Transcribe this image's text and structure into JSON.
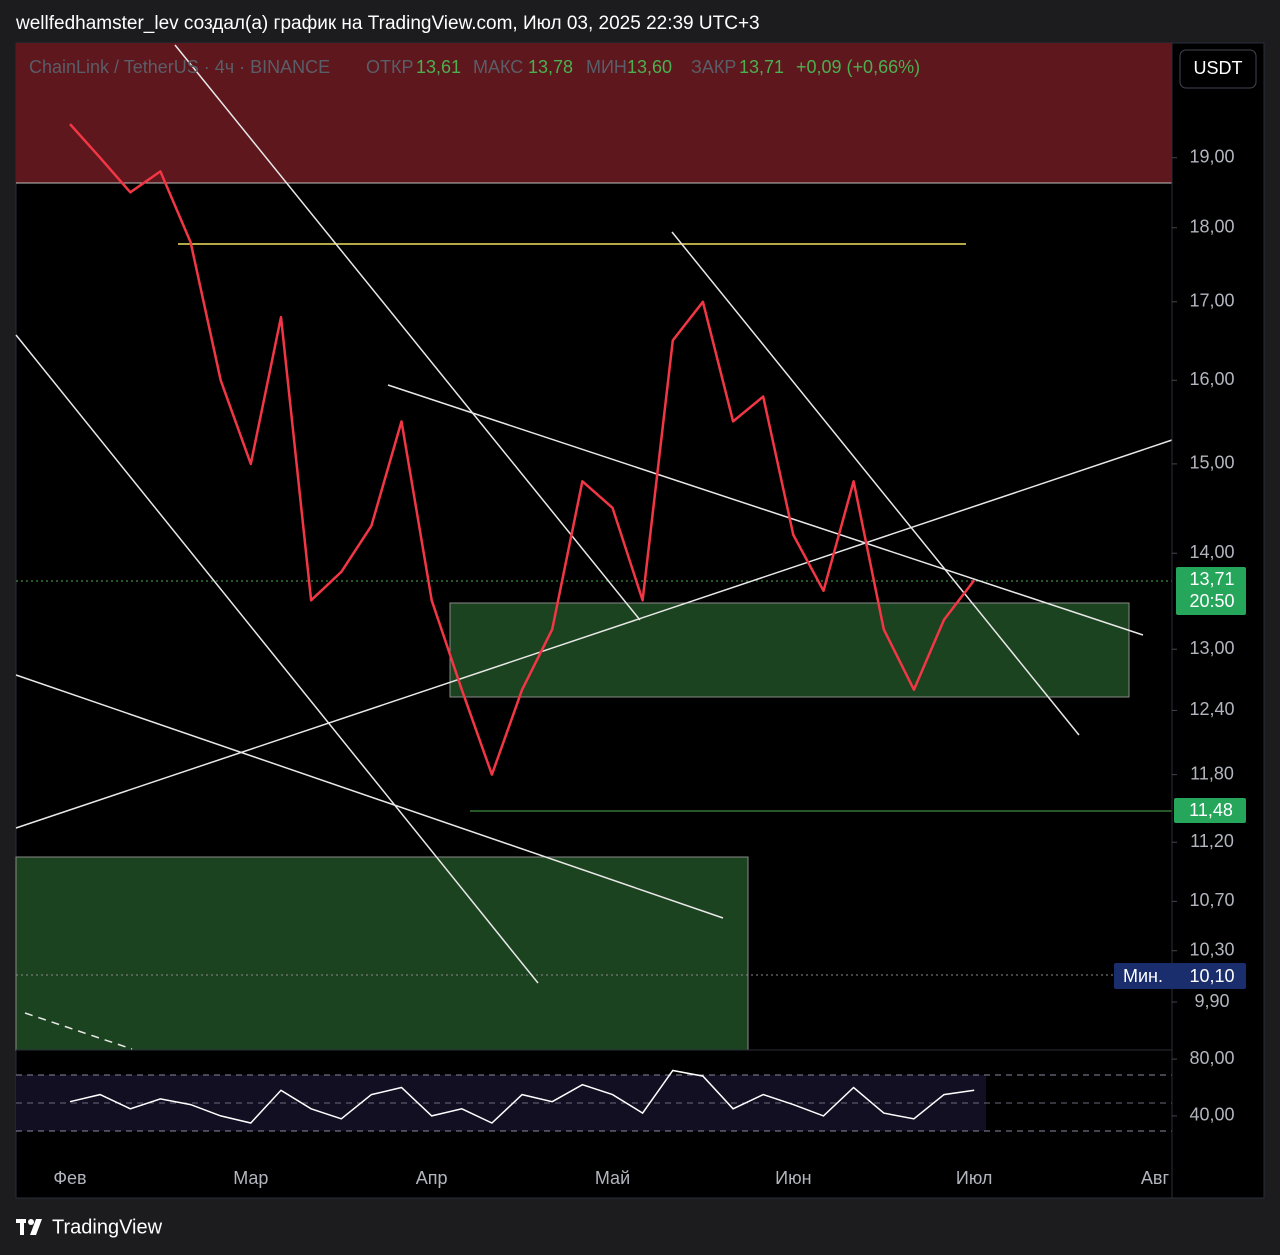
{
  "header": {
    "title": "wellfedhamster_lev создал(а) график на TradingView.com, Июл 03, 2025 22:39 UTC+3"
  },
  "legend": {
    "symbol": "ChainLink / TetherUS · 4ч · BINANCE",
    "open_label": "ОТКР",
    "open": "13,61",
    "high_label": "МАКС",
    "high": "13,78",
    "low_label": "МИН",
    "low": "13,60",
    "close_label": "ЗАКР",
    "close": "13,71",
    "change": "+0,09 (+0,66%)"
  },
  "currency": "USDT",
  "price_tags": {
    "last": "13,71",
    "timer": "20:50",
    "level": "11,48",
    "min_label": "Мин.",
    "min_value": "10,10"
  },
  "chart_data": {
    "type": "line",
    "log_scale": true,
    "color": "#f23645",
    "categories": [
      "Фев",
      null,
      null,
      null,
      null,
      null,
      "Мар",
      null,
      null,
      null,
      null,
      null,
      "Апр",
      null,
      null,
      null,
      null,
      null,
      "Май",
      null,
      null,
      null,
      null,
      null,
      "Июн",
      null,
      null,
      null,
      null,
      null,
      "Июл",
      null,
      null,
      null,
      null,
      null,
      "Авг"
    ],
    "series": [
      {
        "name": "ChainLink / TetherUS",
        "color": "#f23645",
        "values": [
          19.5,
          19.0,
          18.5,
          18.8,
          17.8,
          16.0,
          15.0,
          16.8,
          13.5,
          13.8,
          14.3,
          15.5,
          13.5,
          12.6,
          11.8,
          12.6,
          13.2,
          14.8,
          14.5,
          13.5,
          16.5,
          17.0,
          15.5,
          15.8,
          14.2,
          13.6,
          14.8,
          13.2,
          12.6,
          13.3,
          13.71,
          null,
          null,
          null,
          null,
          null,
          null
        ]
      }
    ],
    "ylim": [
      9.54,
      20.76
    ],
    "yticks": [
      {
        "value": 9.9,
        "label": "9,90"
      },
      {
        "value": 10.3,
        "label": "10,30"
      },
      {
        "value": 10.7,
        "label": "10,70"
      },
      {
        "value": 11.2,
        "label": "11,20"
      },
      {
        "value": 11.8,
        "label": "11,80"
      },
      {
        "value": 12.4,
        "label": "12,40"
      },
      {
        "value": 13,
        "label": "13,00"
      },
      {
        "value": 14,
        "label": "14,00"
      },
      {
        "value": 15,
        "label": "15,00"
      },
      {
        "value": 16,
        "label": "16,00"
      },
      {
        "value": 17,
        "label": "17,00"
      },
      {
        "value": 18,
        "label": "18,00"
      },
      {
        "value": 19,
        "label": "19,00"
      }
    ]
  },
  "indicator": {
    "color": "#ffffff",
    "values": [
      50,
      55,
      45,
      52,
      48,
      40,
      35,
      58,
      45,
      38,
      55,
      60,
      40,
      45,
      35,
      55,
      50,
      62,
      55,
      42,
      72,
      68,
      45,
      55,
      48,
      40,
      60,
      42,
      38,
      55,
      58
    ],
    "ylim": [
      16,
      85
    ],
    "yticks": [
      {
        "value": 80,
        "label": "80,00"
      },
      {
        "value": 40,
        "label": "40,00"
      }
    ]
  },
  "footer": {
    "brand": "TradingView"
  }
}
